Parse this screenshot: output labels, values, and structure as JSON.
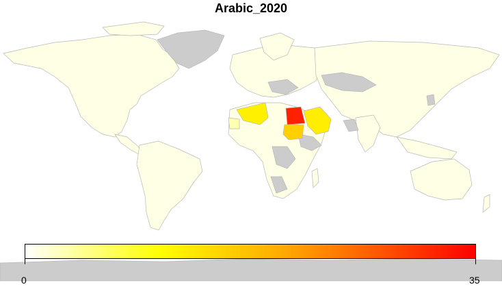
{
  "title": "Arabic_2020",
  "colors": {
    "land_default": "#FFFFE5",
    "no_data": "#CCCCCC",
    "border": "#B8B8B8",
    "scale_low": "#FFFFFF",
    "scale_mid": "#FFFF00",
    "scale_high": "#FF0000"
  },
  "legend": {
    "min_label": "0",
    "max_label": "35",
    "min": 0,
    "max": 35
  },
  "highlighted_regions": [
    {
      "name": "Egypt",
      "value": 35
    },
    {
      "name": "Saudi Arabia",
      "value": 10
    },
    {
      "name": "Sudan",
      "value": 9
    },
    {
      "name": "Algeria",
      "value": 10
    },
    {
      "name": "Western Sahara / Morocco",
      "value": 2
    }
  ]
}
